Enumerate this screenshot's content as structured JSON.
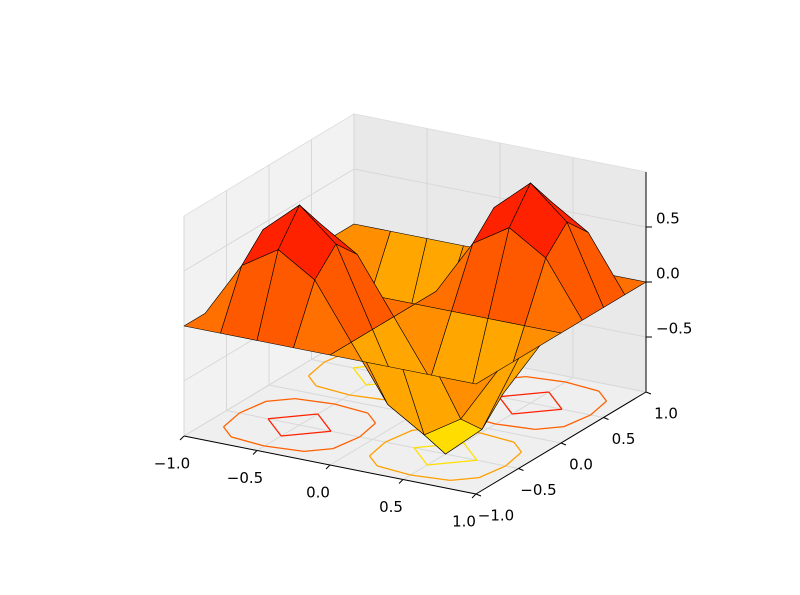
{
  "chart_data": {
    "type": "surface",
    "x": [
      -1,
      -0.75,
      -0.5,
      -0.25,
      0,
      0.25,
      0.5,
      0.75,
      1
    ],
    "y": [
      -1,
      -0.75,
      -0.5,
      -0.25,
      0,
      0.25,
      0.5,
      0.75,
      1
    ],
    "z": [
      [
        0,
        0,
        0,
        0,
        0,
        0,
        0,
        0,
        0
      ],
      [
        0,
        0.5,
        0.71,
        0.5,
        0,
        -0.5,
        -0.71,
        -0.5,
        0
      ],
      [
        0,
        0.71,
        1,
        0.71,
        0,
        -0.71,
        -1,
        -0.71,
        0
      ],
      [
        0,
        0.5,
        0.71,
        0.5,
        0,
        -0.5,
        -0.71,
        -0.5,
        0
      ],
      [
        0,
        0,
        0,
        0,
        0,
        0,
        0,
        0,
        0
      ],
      [
        0,
        -0.5,
        -0.71,
        -0.5,
        0,
        0.5,
        0.71,
        0.5,
        0
      ],
      [
        0,
        -0.71,
        -1,
        -0.71,
        0,
        0.71,
        1,
        0.71,
        0
      ],
      [
        0,
        -0.5,
        -0.71,
        -0.5,
        0,
        0.5,
        0.71,
        0.5,
        0
      ],
      [
        0,
        0,
        0,
        0,
        0,
        0,
        0,
        0,
        0
      ]
    ],
    "colors": [
      "#ffff00",
      "#ff0000"
    ],
    "contour_levels": [
      -0.75,
      -0.5,
      -0.25,
      0.25,
      0.5,
      0.75
    ],
    "xlim": [
      -1,
      1
    ],
    "ylim": [
      -1,
      1
    ],
    "zlim": [
      -1,
      1
    ],
    "xticks": [
      {
        "value": -1,
        "label": "−1.0"
      },
      {
        "value": -0.5,
        "label": "−0.5"
      },
      {
        "value": 0,
        "label": "0.0"
      },
      0.5,
      {
        "value": 1,
        "label": "1.0"
      }
    ],
    "yticks": [
      {
        "value": -1,
        "label": "−1.0"
      },
      {
        "value": -0.5,
        "label": "−0.5"
      },
      {
        "value": 0,
        "label": "0.0"
      },
      0.5,
      {
        "value": 1,
        "label": "1.0"
      }
    ],
    "zticks": [
      {
        "value": -0.5,
        "label": "−0.5"
      },
      {
        "value": 0,
        "label": "0.0"
      },
      0.5
    ],
    "grid": true
  }
}
